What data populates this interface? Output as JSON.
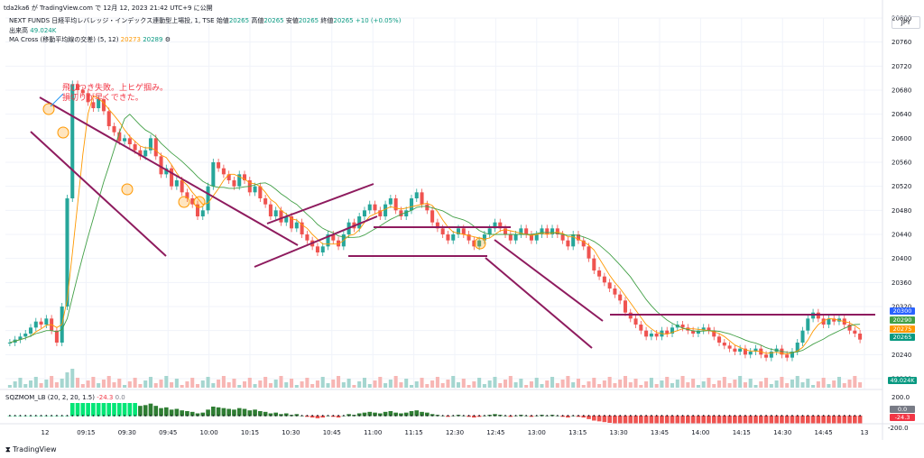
{
  "header": {
    "published_line": "tda2ka6 が TradingView.com で 12月 12, 2023 21:42 UTC+9 に公開",
    "symbol": "NEXT FUNDS 日経平均レバレッジ・インデックス連動型上場投, 1, TSE",
    "open_label": "始値",
    "open_value": "20265",
    "high_label": "高値",
    "high_value": "20265",
    "low_label": "安値",
    "low_value": "20265",
    "close_label": "終値",
    "close_value": "20265",
    "change": "+10 (+0.05%)",
    "volume_label": "出来高",
    "volume_value": "49.024K",
    "ma_label": "MA Cross (移動平均線の交差) (5, 12)",
    "ma_value_1": "20273",
    "ma_value_2": "20289",
    "currency": "JPY"
  },
  "annotation": {
    "line1": "飛びつき失敗。上ヒゲ掴み。",
    "line2": "損切りが早くできた。"
  },
  "tags": {
    "price_20300": "20300",
    "price_20290": "20290",
    "price_20275": "20275",
    "price_20265": "20265",
    "volume": "49.024K",
    "sqz_zero": "0.0",
    "sqz_val": "-24.3"
  },
  "sqz": {
    "label": "SQZMOM_LB (20, 2, 20, 1.5)",
    "value1": "-24.3",
    "value2": "0.0",
    "axis_top": "200.0",
    "axis_bottom": "-200.0"
  },
  "footer": {
    "brand": "TradingView"
  },
  "colors": {
    "up": "#26a69a",
    "down": "#ef5350",
    "channel": "#8e1b5e",
    "ma": "#43a047",
    "accent": "#ff9800"
  },
  "chart_data": {
    "type": "candlestick",
    "interval": "1 min",
    "y_axis": {
      "min": 20200,
      "max": 20800,
      "ticks": [
        "20800",
        "20760",
        "20720",
        "20680",
        "20640",
        "20600",
        "20560",
        "20520",
        "20480",
        "20440",
        "20400",
        "20360",
        "20320",
        "20280",
        "20240",
        "20200"
      ]
    },
    "x_ticks": [
      "12",
      "09:15",
      "09:30",
      "09:45",
      "10:00",
      "10:15",
      "10:30",
      "10:45",
      "11:00",
      "11:15",
      "12:30",
      "12:45",
      "13:00",
      "13:15",
      "13:30",
      "13:45",
      "14:00",
      "14:15",
      "14:30",
      "14:45",
      "13"
    ],
    "approx_closes": [
      20260,
      20265,
      20270,
      20275,
      20285,
      20295,
      20290,
      20300,
      20280,
      20260,
      20320,
      20500,
      20690,
      20680,
      20675,
      20660,
      20650,
      20665,
      20645,
      20620,
      20610,
      20595,
      20600,
      20590,
      20580,
      20570,
      20580,
      20600,
      20570,
      20540,
      20550,
      20520,
      20530,
      20510,
      20500,
      20490,
      20470,
      20480,
      20520,
      20560,
      20550,
      20540,
      20530,
      20520,
      20540,
      20530,
      20510,
      20520,
      20500,
      20490,
      20470,
      20480,
      20460,
      20470,
      20450,
      20460,
      20440,
      20430,
      20420,
      20410,
      20420,
      20440,
      20430,
      20420,
      20440,
      20460,
      20450,
      20470,
      20480,
      20490,
      20480,
      20470,
      20490,
      20500,
      20480,
      20470,
      20480,
      20500,
      20510,
      20490,
      20480,
      20460,
      20450,
      20440,
      20430,
      20440,
      20450,
      20440,
      20430,
      20420,
      20430,
      20440,
      20450,
      20460,
      20450,
      20440,
      20430,
      20440,
      20450,
      20440,
      20430,
      20440,
      20450,
      20440,
      20450,
      20440,
      20430,
      20420,
      20440,
      20430,
      20420,
      20400,
      20380,
      20370,
      20360,
      20350,
      20340,
      20330,
      20310,
      20300,
      20290,
      20280,
      20270,
      20275,
      20270,
      20280,
      20275,
      20285,
      20290,
      20285,
      20280,
      20275,
      20280,
      20285,
      20280,
      20270,
      20260,
      20255,
      20250,
      20245,
      20250,
      20240,
      20245,
      20250,
      20240,
      20235,
      20245,
      20250,
      20240,
      20235,
      20245,
      20260,
      20280,
      20300,
      20310,
      20300,
      20290,
      20300,
      20295,
      20300,
      20290,
      20280,
      20275,
      20265
    ],
    "annotations": [
      {
        "type": "descending_channel",
        "range": "09:00-09:55"
      },
      {
        "type": "ascending_channel",
        "range": "10:15-10:50"
      },
      {
        "type": "horizontal_range",
        "upper": 20470,
        "lower": 20420
      },
      {
        "type": "descending_channel",
        "range": "12:45-13:20"
      },
      {
        "type": "resistance_line",
        "price": 20300
      }
    ]
  }
}
